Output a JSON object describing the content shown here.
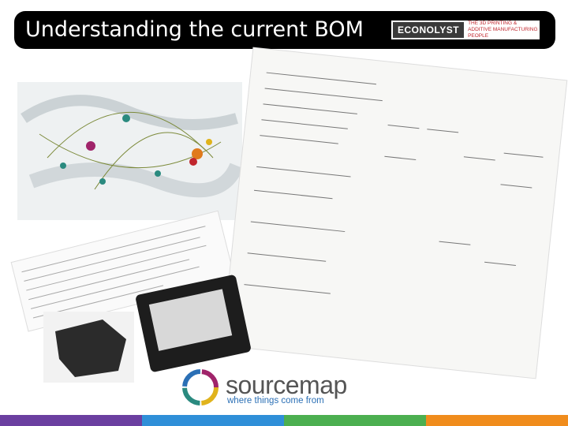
{
  "header": {
    "title": "Understanding the current BOM",
    "logo": {
      "name": "ECONOLYST",
      "tagline": "THE 3D PRINTING & ADDITIVE MANUFACTURING PEOPLE"
    }
  },
  "footer_logo": {
    "name": "sourcemap",
    "tagline": "where things come from"
  }
}
